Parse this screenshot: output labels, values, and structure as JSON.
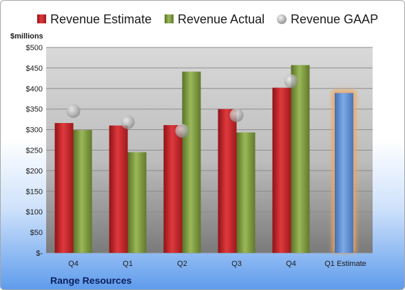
{
  "chart_data": {
    "type": "bar",
    "ylabel": "$millions",
    "company": "Range Resources",
    "categories": [
      "Q4",
      "Q1",
      "Q2",
      "Q3",
      "Q4",
      "Q1 Estimate"
    ],
    "ylim": [
      0,
      500
    ],
    "yticks": [
      0,
      50,
      100,
      150,
      200,
      250,
      300,
      350,
      400,
      450,
      500
    ],
    "ytick_labels": [
      "$-",
      "$50",
      "$100",
      "$150",
      "$200",
      "$250",
      "$300",
      "$350",
      "$400",
      "$450",
      "$500"
    ],
    "grid": true,
    "legend_position": "top",
    "series": [
      {
        "name": "Revenue Estimate",
        "kind": "bar",
        "color": "#c8262b",
        "values": [
          316,
          310,
          311,
          350,
          402,
          null
        ]
      },
      {
        "name": "Revenue Actual",
        "kind": "bar",
        "color": "#7f9c3a",
        "values": [
          299,
          245,
          441,
          293,
          457,
          null
        ]
      },
      {
        "name": "Revenue GAAP",
        "kind": "marker",
        "color": "#b0b0b0",
        "values": [
          345,
          318,
          297,
          335,
          418,
          null
        ]
      },
      {
        "name": "Q1 Estimate",
        "kind": "bar",
        "color": "#5b8fd4",
        "highlight": "#f2a65a",
        "values": [
          null,
          null,
          null,
          null,
          null,
          389
        ]
      }
    ]
  }
}
